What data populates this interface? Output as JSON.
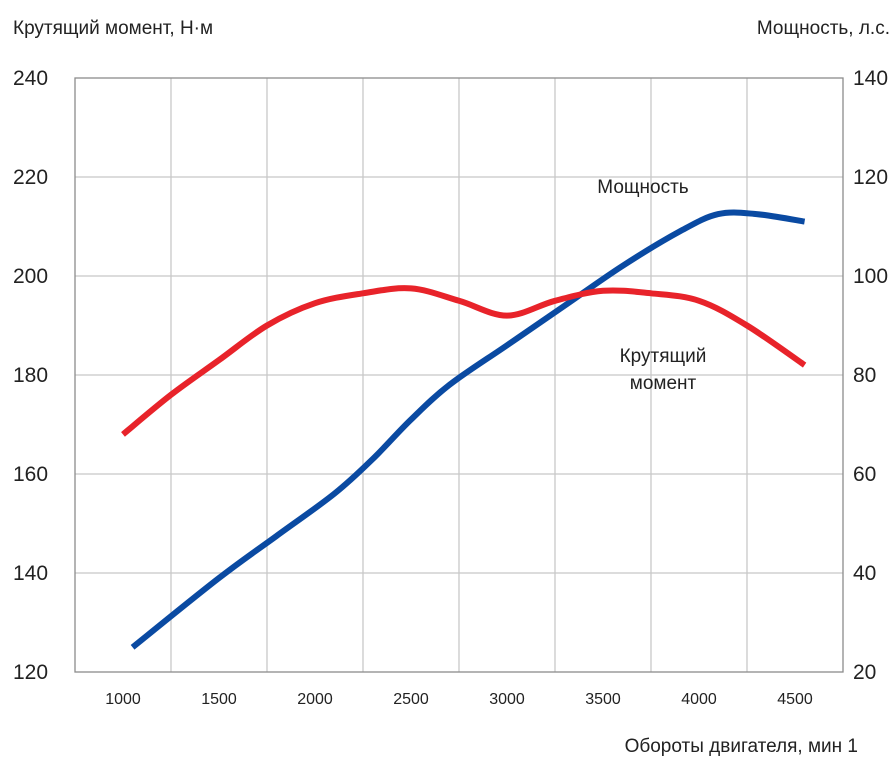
{
  "chart_data": {
    "type": "line",
    "y_left_label": "Крутящий момент, Н·м",
    "y_right_label": "Мощность, л.с.",
    "xlabel": "Обороты двигателя, мин 1",
    "x_ticks": [
      "1000",
      "1500",
      "2000",
      "2500",
      "3000",
      "3500",
      "4000",
      "4500"
    ],
    "y_left_ticks": [
      "240",
      "220",
      "200",
      "180",
      "160",
      "140",
      "120"
    ],
    "y_right_ticks": [
      "140",
      "120",
      "100",
      "80",
      "60",
      "40",
      "20"
    ],
    "y_left_range": [
      120,
      240
    ],
    "y_right_range": [
      20,
      140
    ],
    "grid": true,
    "series": [
      {
        "name": "Мощность",
        "axis": "right",
        "color": "#0a4aa2",
        "points": [
          [
            1050,
            25
          ],
          [
            1500,
            39
          ],
          [
            1800,
            47.5
          ],
          [
            2100,
            56
          ],
          [
            2300,
            63
          ],
          [
            2500,
            71
          ],
          [
            2700,
            78
          ],
          [
            3000,
            86
          ],
          [
            3300,
            94
          ],
          [
            3600,
            102
          ],
          [
            3900,
            109
          ],
          [
            4100,
            112.5
          ],
          [
            4300,
            112.5
          ],
          [
            4550,
            111
          ]
        ]
      },
      {
        "name": "Крутящий момент",
        "label_lines": [
          "Крутящий",
          "момент"
        ],
        "axis": "left",
        "color": "#e8232a",
        "points": [
          [
            1000,
            168
          ],
          [
            1250,
            176
          ],
          [
            1500,
            183
          ],
          [
            1750,
            190
          ],
          [
            2000,
            194.5
          ],
          [
            2250,
            196.5
          ],
          [
            2500,
            197.5
          ],
          [
            2750,
            195
          ],
          [
            3000,
            192
          ],
          [
            3250,
            195
          ],
          [
            3500,
            197
          ],
          [
            3750,
            196.5
          ],
          [
            4000,
            195
          ],
          [
            4250,
            190
          ],
          [
            4550,
            182
          ]
        ]
      }
    ]
  }
}
